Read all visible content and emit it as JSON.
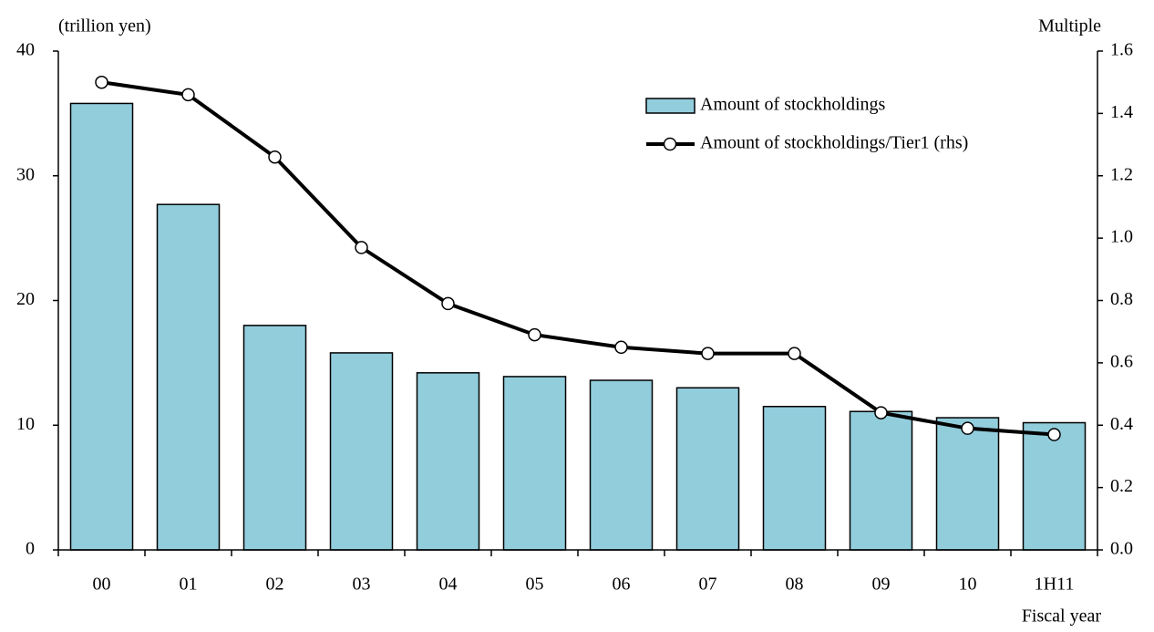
{
  "chart_data": {
    "type": "bar_line",
    "y_label": "(trillion yen)",
    "y2_label": "Multiple",
    "x_label": "Fiscal year",
    "categories": [
      "00",
      "01",
      "02",
      "03",
      "04",
      "05",
      "06",
      "07",
      "08",
      "09",
      "10",
      "1H11"
    ],
    "series": [
      {
        "name": "Amount of stockholdings",
        "type": "bar",
        "color": "#92cddc",
        "axis": "y",
        "values": [
          35.8,
          27.7,
          18.0,
          15.8,
          14.2,
          13.9,
          13.6,
          13.0,
          11.5,
          11.1,
          10.6,
          10.2
        ]
      },
      {
        "name": "Amount of stockholdings/Tier1 (rhs)",
        "type": "line",
        "color": "#000000",
        "axis": "y2",
        "values": [
          1.5,
          1.46,
          1.26,
          0.97,
          0.79,
          0.69,
          0.65,
          0.63,
          0.63,
          0.44,
          0.39,
          0.37
        ]
      }
    ],
    "ylim": [
      0,
      40
    ],
    "yticks": [
      0,
      10,
      20,
      30,
      40
    ],
    "y2lim": [
      0,
      1.6
    ],
    "y2ticks": [
      {
        "value": 0,
        "label": "0.0"
      },
      0.2,
      0.4,
      0.6,
      0.8,
      {
        "value": 1,
        "label": "1.0"
      },
      1.2,
      1.4,
      1.6
    ],
    "legend": "upper right",
    "grid": false
  }
}
